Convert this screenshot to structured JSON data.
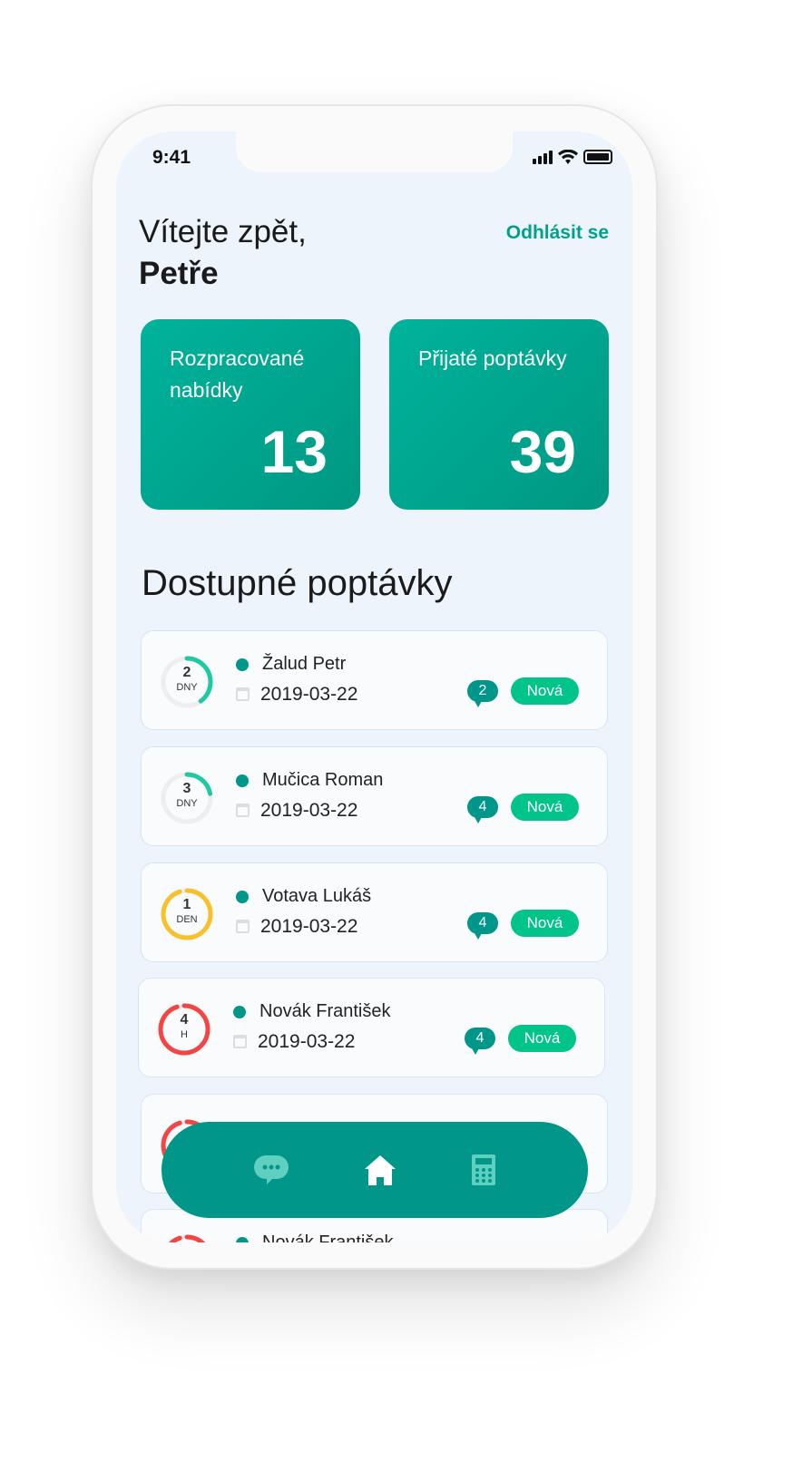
{
  "status_bar": {
    "time": "9:41"
  },
  "header": {
    "greeting": "Vítejte zpět,",
    "name": "Petře",
    "logout": "Odhlásit se"
  },
  "stats": [
    {
      "label": "Rozpracované nabídky",
      "value": "13"
    },
    {
      "label": "Přijaté poptávky",
      "value": "39"
    }
  ],
  "section_title": "Dostupné poptávky",
  "colors": {
    "accent": "#00968a",
    "badge": "#00c48a",
    "ring_green": "#1ec9a3",
    "ring_yellow": "#f8c02a",
    "ring_red": "#f44545"
  },
  "requests": [
    {
      "count": "2",
      "unit": "DNY",
      "progress": 0.4,
      "ring_color": "#1ec9a3",
      "name": "Žalud Petr",
      "date": "2019-03-22",
      "messages": "2",
      "status": "Nová"
    },
    {
      "count": "3",
      "unit": "DNY",
      "progress": 0.22,
      "ring_color": "#1ec9a3",
      "name": "Mučica Roman",
      "date": "2019-03-22",
      "messages": "4",
      "status": "Nová"
    },
    {
      "count": "1",
      "unit": "DEN",
      "progress": 0.95,
      "ring_color": "#f8c02a",
      "name": "Votava Lukáš",
      "date": "2019-03-22",
      "messages": "4",
      "status": "Nová"
    },
    {
      "count": "4",
      "unit": "H",
      "progress": 0.95,
      "ring_color": "#f44545",
      "name": "Novák František",
      "date": "2019-03-22",
      "messages": "4",
      "status": "Nová"
    },
    {
      "count": "",
      "unit": "",
      "progress": 0.95,
      "ring_color": "#f44545",
      "name": "",
      "date": "",
      "messages": "",
      "status": ""
    },
    {
      "count": "",
      "unit": "",
      "progress": 0.95,
      "ring_color": "#f44545",
      "name": "Novák František",
      "date": "",
      "messages": "",
      "status": ""
    }
  ],
  "nav": [
    "chat-icon",
    "home-icon",
    "calculator-icon"
  ]
}
